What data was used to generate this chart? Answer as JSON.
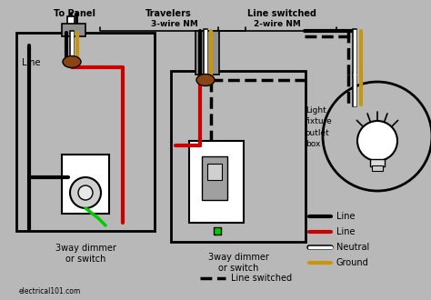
{
  "bg_color": "#b8b8b8",
  "title_texts": {
    "to_panel": "To Panel",
    "travelers": "Travelers",
    "line_switched": "Line switched",
    "wire3_nm": "3-wire NM",
    "wire2_nm": "2-wire NM",
    "line_label1": "Line",
    "dimmer1": "3way dimmer\nor switch",
    "dimmer2": "3way dimmer\nor switch",
    "website": "electrical101.com",
    "light_fixture": "Light\nfixture\noutlet\nbox",
    "line_switched_legend": "Line switched"
  },
  "legend_labels": [
    "Line",
    "Line",
    "Neutral",
    "Ground"
  ],
  "legend_colors": [
    "#000000",
    "#cc0000",
    "#ffffff",
    "#c8960c"
  ],
  "colors": {
    "black": "#000000",
    "red": "#cc0000",
    "white": "#ffffff",
    "gold": "#c8960c",
    "green": "#00cc00",
    "gray_box": "#b8b8b8",
    "dark_gray": "#555555",
    "brown": "#8B4513",
    "light_gray": "#c8c8c8",
    "switch_gray": "#a0a0a0"
  }
}
